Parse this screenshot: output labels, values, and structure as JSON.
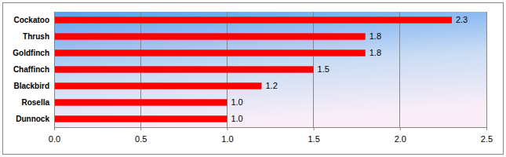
{
  "chart_data": {
    "type": "bar",
    "orientation": "horizontal",
    "categories": [
      "Cockatoo",
      "Thrush",
      "Goldfinch",
      "Chaffinch",
      "Blackbird",
      "Rosella",
      "Dunnock"
    ],
    "values": [
      2.3,
      1.8,
      1.8,
      1.5,
      1.2,
      1.0,
      1.0
    ],
    "value_labels": [
      "2.3",
      "1.8",
      "1.8",
      "1.5",
      "1.2",
      "1.0",
      "1.0"
    ],
    "color": "#ff0000",
    "xlim": [
      0,
      2.5
    ],
    "xticks": [
      {
        "value": 0,
        "label": "0.0"
      },
      {
        "value": 0.5,
        "label": "0.5"
      },
      {
        "value": 1,
        "label": "1.0"
      },
      {
        "value": 1.5,
        "label": "1.5"
      },
      {
        "value": 2,
        "label": "2.0"
      },
      {
        "value": 2.5,
        "label": "2.5"
      }
    ],
    "grid": true,
    "data_labels": true
  }
}
